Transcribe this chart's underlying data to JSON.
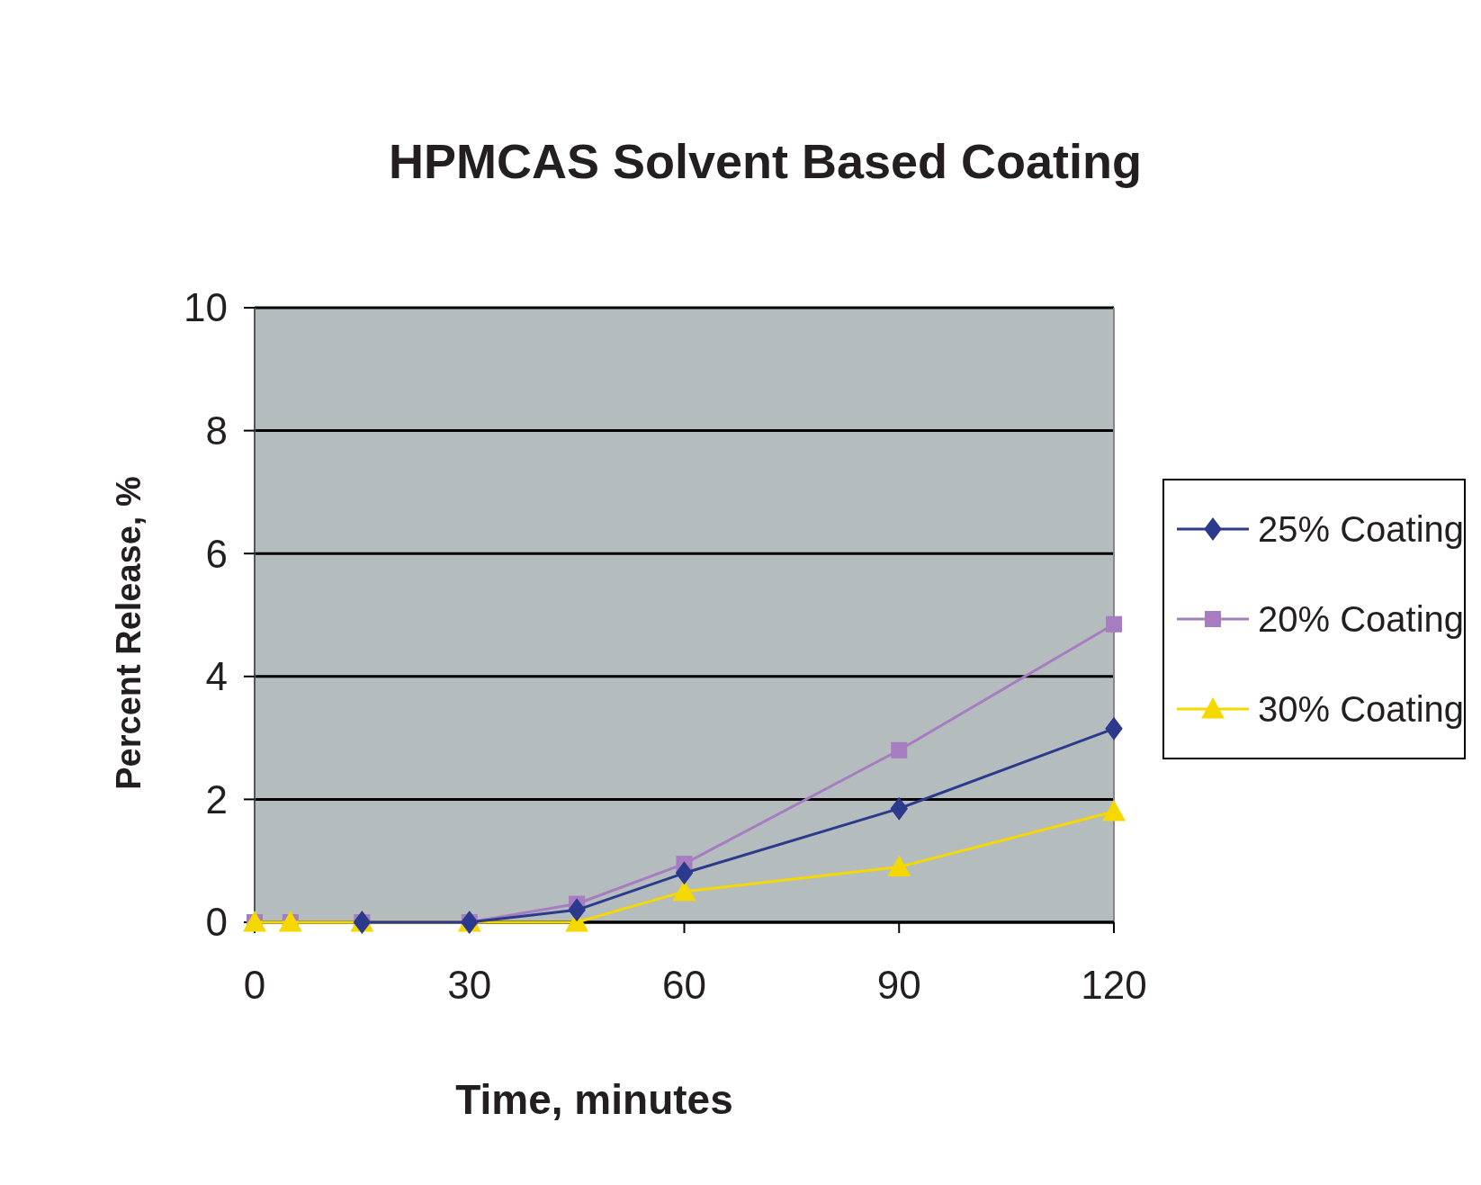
{
  "chart_data": {
    "type": "line",
    "title": "HPMCAS Solvent Based Coating",
    "xlabel": "Time, minutes",
    "ylabel": "Percent Release, %",
    "x": [
      0,
      5,
      15,
      30,
      45,
      60,
      90,
      120
    ],
    "series": [
      {
        "name": "25% Coating",
        "color": "#2b3a8c",
        "marker": "diamond",
        "values": [
          null,
          null,
          0,
          0,
          0.2,
          0.8,
          1.85,
          3.15
        ]
      },
      {
        "name": "20% Coating",
        "color": "#a77cc0",
        "marker": "square",
        "values": [
          0,
          0,
          0,
          0,
          0.3,
          0.95,
          2.8,
          4.85
        ]
      },
      {
        "name": "30% Coating",
        "color": "#f5d800",
        "marker": "triangle",
        "values": [
          0,
          0,
          0,
          0,
          0,
          0.5,
          0.9,
          1.8
        ]
      }
    ],
    "xlim": [
      0,
      120
    ],
    "xticks": [
      0,
      30,
      60,
      90,
      120
    ],
    "ylim": [
      0,
      10
    ],
    "yticks": [
      0,
      2,
      4,
      6,
      8,
      10
    ],
    "grid": "y",
    "legend": "right"
  }
}
